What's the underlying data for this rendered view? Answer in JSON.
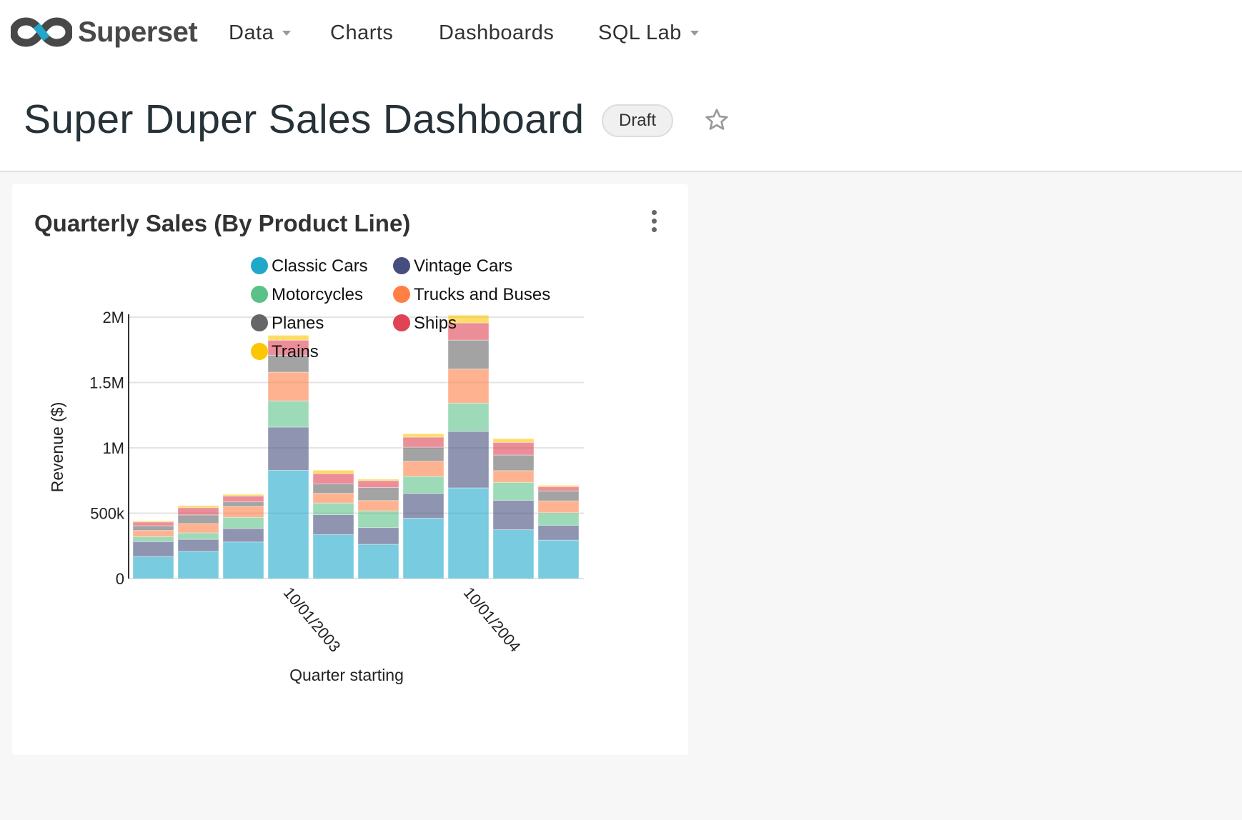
{
  "navbar": {
    "brand": "Superset",
    "items": [
      {
        "label": "Data",
        "dropdown": true
      },
      {
        "label": "Charts",
        "dropdown": false
      },
      {
        "label": "Dashboards",
        "dropdown": false
      },
      {
        "label": "SQL Lab",
        "dropdown": true
      }
    ]
  },
  "dashboard": {
    "title": "Super Duper Sales Dashboard",
    "status_badge": "Draft",
    "favorite_icon": "star-outline-icon"
  },
  "chart_card": {
    "title": "Quarterly Sales (By Product Line)",
    "menu_icon": "vertical-ellipsis-icon"
  },
  "chart_data": {
    "type": "bar",
    "stacked": true,
    "xlabel": "Quarter starting",
    "ylabel": "Revenue ($)",
    "ylim": [
      0,
      2000000
    ],
    "y_ticks": [
      {
        "value": 0,
        "label": "0"
      },
      {
        "value": 500000,
        "label": "500k"
      },
      {
        "value": 1000000,
        "label": "1M"
      },
      {
        "value": 1500000,
        "label": "1.5M"
      },
      {
        "value": 2000000,
        "label": "2M"
      }
    ],
    "x_tick_labels": [
      {
        "bar_index": 3,
        "label": "10/01/2003"
      },
      {
        "bar_index": 7,
        "label": "10/01/2004"
      }
    ],
    "grid": true,
    "legend_position": "top",
    "series": [
      {
        "name": "Classic Cars",
        "color": "#1FA8C9",
        "values": [
          168000,
          208000,
          280000,
          828000,
          336000,
          262000,
          462000,
          694000,
          374000,
          294000
        ]
      },
      {
        "name": "Vintage Cars",
        "color": "#454E7C",
        "values": [
          115000,
          92000,
          104000,
          331000,
          153000,
          128000,
          190000,
          432000,
          225000,
          114000
        ]
      },
      {
        "name": "Motorcycles",
        "color": "#5AC189",
        "values": [
          38000,
          50000,
          85000,
          200000,
          89000,
          128000,
          130000,
          216000,
          137000,
          96000
        ]
      },
      {
        "name": "Trucks and Buses",
        "color": "#FF7F44",
        "values": [
          47000,
          71000,
          83000,
          220000,
          74000,
          79000,
          115000,
          261000,
          90000,
          90000
        ]
      },
      {
        "name": "Planes",
        "color": "#666666",
        "values": [
          36000,
          66000,
          35000,
          130000,
          72000,
          100000,
          108000,
          221000,
          119000,
          76000
        ]
      },
      {
        "name": "Ships",
        "color": "#E04355",
        "values": [
          29000,
          56000,
          45000,
          115000,
          79000,
          52000,
          77000,
          132000,
          97000,
          32000
        ]
      },
      {
        "name": "Trains",
        "color": "#FCC700",
        "values": [
          9000,
          15000,
          12000,
          37000,
          26000,
          11000,
          26000,
          59000,
          28000,
          11000
        ]
      }
    ]
  }
}
